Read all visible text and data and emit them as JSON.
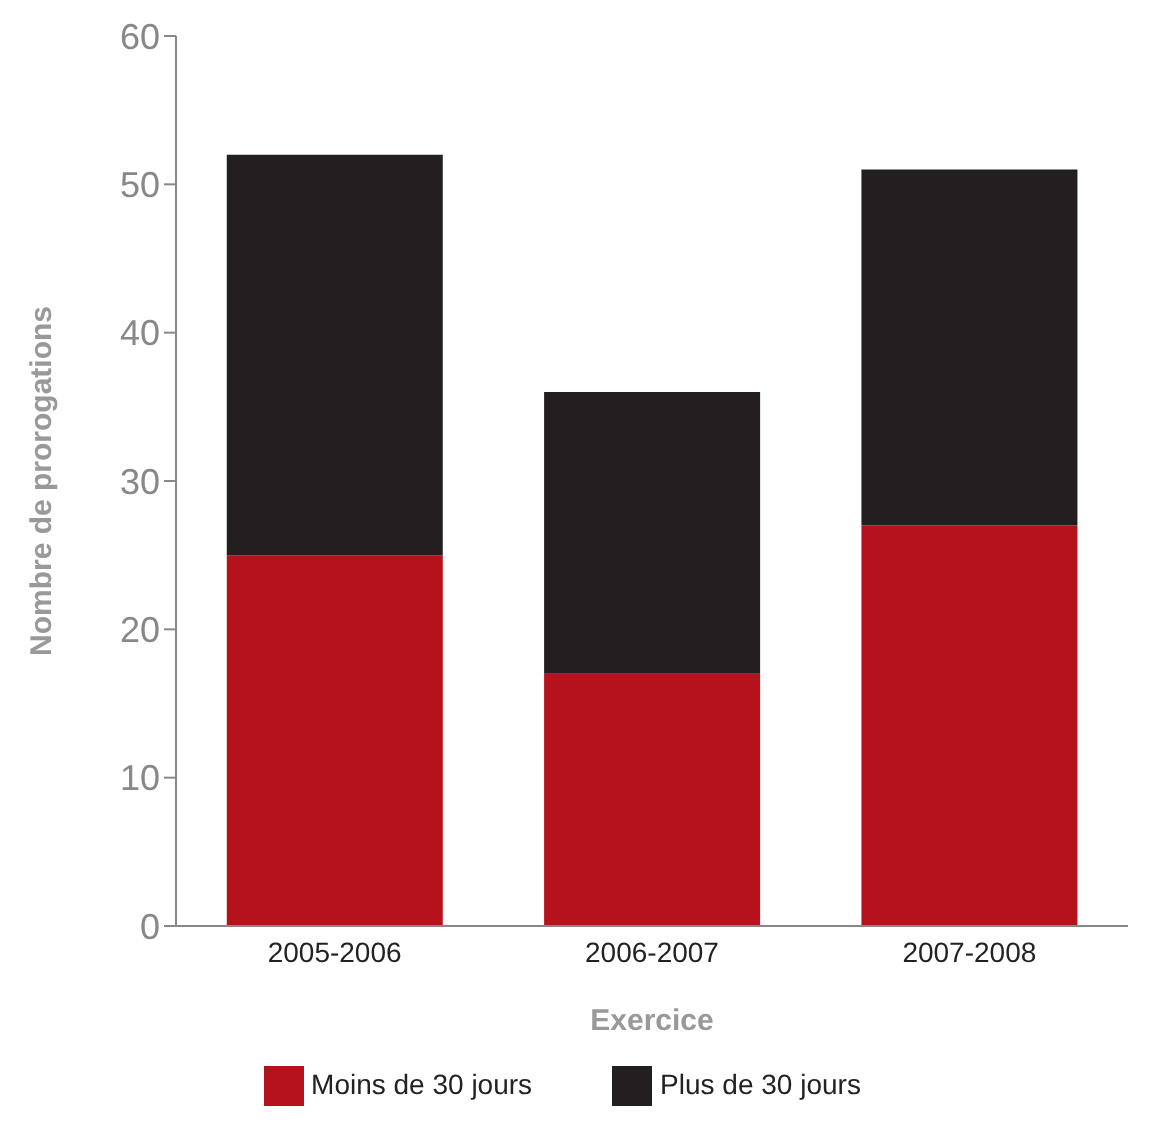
{
  "chart_data": {
    "type": "bar",
    "stacked": true,
    "xlabel": "Exercice",
    "ylabel": "Nombre de prorogations",
    "categories": [
      "2005-2006",
      "2006-2007",
      "2007-2008"
    ],
    "series": [
      {
        "name": "Moins de 30 jours",
        "color": "#b5121b",
        "values": [
          25,
          17,
          27
        ]
      },
      {
        "name": "Plus de 30 jours",
        "color": "#231f20",
        "values": [
          27,
          19,
          24
        ]
      }
    ],
    "ylim": [
      0,
      60
    ],
    "yticks": [
      0,
      10,
      20,
      30,
      40,
      50,
      60
    ],
    "grid": false,
    "legend": "bottom"
  }
}
